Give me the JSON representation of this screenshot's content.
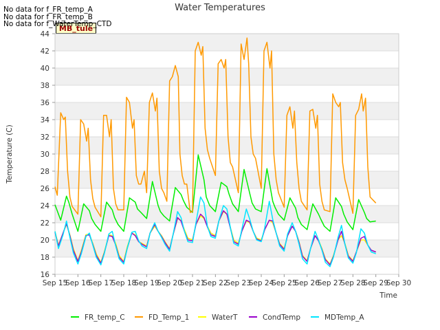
{
  "notes": [
    "No data for f_FR_temp_A",
    "No data for f_FR_temp_B",
    "No data for f_WaterTemp_CTD"
  ],
  "badge": "MB_tule",
  "chart_data": {
    "type": "line",
    "title": "Water Temperatures",
    "xlabel": "Time",
    "ylabel": "Temperature (C)",
    "ylim": [
      16,
      44
    ],
    "yticks": [
      16,
      18,
      20,
      22,
      24,
      26,
      28,
      30,
      32,
      34,
      36,
      38,
      40,
      42,
      44
    ],
    "xticks": [
      "Sep 15",
      "Sep 16",
      "Sep 17",
      "Sep 18",
      "Sep 19",
      "Sep 20",
      "Sep 21",
      "Sep 22",
      "Sep 23",
      "Sep 24",
      "Sep 25",
      "Sep 26",
      "Sep 27",
      "Sep 28",
      "Sep 29",
      "Sep 30"
    ],
    "grid": "horizontal bands",
    "legend": "bottom",
    "series": [
      {
        "name": "FR_temp_C",
        "color": "#00ee00",
        "x": [
          15.0,
          15.25,
          15.5,
          15.6,
          15.75,
          16.0,
          16.25,
          16.5,
          16.6,
          16.75,
          17.0,
          17.25,
          17.5,
          17.6,
          17.75,
          18.0,
          18.25,
          18.5,
          18.6,
          18.75,
          19.0,
          19.25,
          19.5,
          19.6,
          19.75,
          20.0,
          20.25,
          20.5,
          20.6,
          20.75,
          21.0,
          21.25,
          21.5,
          21.6,
          21.75,
          22.0,
          22.25,
          22.5,
          22.6,
          22.75,
          23.0,
          23.25,
          23.5,
          23.6,
          23.75,
          24.0,
          24.25,
          24.5,
          24.6,
          24.75,
          25.0,
          25.25,
          25.5,
          25.6,
          25.75,
          26.0,
          26.25,
          26.5,
          26.6,
          26.75,
          27.0,
          27.25,
          27.5,
          27.6,
          27.75,
          28.0,
          28.25,
          28.5,
          28.6,
          28.75,
          29.0
        ],
        "y": [
          24.1,
          22.3,
          25.1,
          24.4,
          23.0,
          21.0,
          24.2,
          23.4,
          22.5,
          21.8,
          21.0,
          24.4,
          23.5,
          22.6,
          21.8,
          21.0,
          24.9,
          24.4,
          23.6,
          23.2,
          22.5,
          26.8,
          24.0,
          23.3,
          22.8,
          22.2,
          26.1,
          25.3,
          24.6,
          23.8,
          23.2,
          29.9,
          27.0,
          25.0,
          24.0,
          23.3,
          26.7,
          26.2,
          25.3,
          24.2,
          23.3,
          28.2,
          25.4,
          24.3,
          23.6,
          23.3,
          28.3,
          24.5,
          23.8,
          23.0,
          22.3,
          24.9,
          23.7,
          22.6,
          21.8,
          21.2,
          24.2,
          23.0,
          22.4,
          21.6,
          21.0,
          24.9,
          23.9,
          23.0,
          22.1,
          21.2,
          24.7,
          23.2,
          22.5,
          22.1,
          22.2
        ]
      },
      {
        "name": "FD_Temp_1",
        "color": "#ff9900",
        "x": [
          15.0,
          15.1,
          15.25,
          15.38,
          15.45,
          15.55,
          15.65,
          15.75,
          16.0,
          16.12,
          16.25,
          16.38,
          16.45,
          16.55,
          16.65,
          16.75,
          17.0,
          17.12,
          17.25,
          17.38,
          17.45,
          17.55,
          17.65,
          17.75,
          18.0,
          18.12,
          18.25,
          18.38,
          18.45,
          18.55,
          18.65,
          18.75,
          18.9,
          19.0,
          19.12,
          19.25,
          19.38,
          19.45,
          19.55,
          19.65,
          19.75,
          19.88,
          20.0,
          20.12,
          20.25,
          20.38,
          20.45,
          20.55,
          20.65,
          20.75,
          20.9,
          21.0,
          21.12,
          21.25,
          21.38,
          21.45,
          21.55,
          21.65,
          21.75,
          22.0,
          22.12,
          22.25,
          22.38,
          22.45,
          22.55,
          22.65,
          22.75,
          23.0,
          23.12,
          23.25,
          23.38,
          23.45,
          23.55,
          23.65,
          23.75,
          24.0,
          24.12,
          24.25,
          24.38,
          24.45,
          24.55,
          24.65,
          24.75,
          25.0,
          25.12,
          25.25,
          25.38,
          25.45,
          25.55,
          25.65,
          25.75,
          26.0,
          26.12,
          26.25,
          26.38,
          26.45,
          26.55,
          26.65,
          26.75,
          27.0,
          27.12,
          27.25,
          27.38,
          27.45,
          27.55,
          27.65,
          27.75,
          28.0,
          28.12,
          28.25,
          28.38,
          28.45,
          28.55,
          28.65,
          28.75,
          29.0
        ],
        "y": [
          26.2,
          25.2,
          34.8,
          34.0,
          34.3,
          28.0,
          25.0,
          23.9,
          23.0,
          34.0,
          33.5,
          31.5,
          33.0,
          27.0,
          24.8,
          23.8,
          22.7,
          34.5,
          34.5,
          32.0,
          34.0,
          26.0,
          24.2,
          23.5,
          23.5,
          36.6,
          36.0,
          33.0,
          34.0,
          27.5,
          26.5,
          26.5,
          28.0,
          25.5,
          36.0,
          37.1,
          35.0,
          36.5,
          28.0,
          26.0,
          25.5,
          24.5,
          38.5,
          39.0,
          40.3,
          39.0,
          30.0,
          27.5,
          26.5,
          26.5,
          23.2,
          23.3,
          42.0,
          43.0,
          41.5,
          42.5,
          33.0,
          30.5,
          29.5,
          27.5,
          40.5,
          41.0,
          40.0,
          41.0,
          32.0,
          29.0,
          28.5,
          25.5,
          42.8,
          41.0,
          43.5,
          40.5,
          32.0,
          30.0,
          29.5,
          26.0,
          42.0,
          43.0,
          40.0,
          42.0,
          30.0,
          27.0,
          25.5,
          23.8,
          34.5,
          35.5,
          33.0,
          35.0,
          29.0,
          26.0,
          24.5,
          23.5,
          35.0,
          35.2,
          33.0,
          34.5,
          26.5,
          24.5,
          23.5,
          23.3,
          37.0,
          36.0,
          35.5,
          36.0,
          29.0,
          27.0,
          26.0,
          23.1,
          34.5,
          35.2,
          37.0,
          35.0,
          36.5,
          28.5,
          25.0,
          24.3
        ]
      },
      {
        "name": "WaterT",
        "color": "#ffff00",
        "x": [
          15.0,
          15.15,
          15.35,
          15.5,
          15.65,
          15.8,
          16.0,
          16.15,
          16.35,
          16.5,
          16.65,
          16.8,
          17.0,
          17.15,
          17.35,
          17.5,
          17.65,
          17.8,
          18.0,
          18.15,
          18.35,
          18.5,
          18.65,
          18.8,
          19.0,
          19.15,
          19.35,
          19.5,
          19.65,
          19.8,
          20.0,
          20.15,
          20.35,
          20.5,
          20.65,
          20.8,
          21.0,
          21.15,
          21.35,
          21.5,
          21.65,
          21.8,
          22.0,
          22.15,
          22.35,
          22.5,
          22.65,
          22.8,
          23.0,
          23.15,
          23.35,
          23.5,
          23.65,
          23.8,
          24.0,
          24.15,
          24.35,
          24.5,
          24.65,
          24.8,
          25.0,
          25.15,
          25.35,
          25.5,
          25.65,
          25.8,
          26.0,
          26.15,
          26.35,
          26.5,
          26.65,
          26.8,
          27.0,
          27.15,
          27.35,
          27.5,
          27.65,
          27.8,
          28.0,
          28.15,
          28.35,
          28.5,
          28.65,
          28.8,
          29.0
        ],
        "y": [
          21.0,
          19.4,
          20.8,
          21.8,
          20.6,
          19.0,
          17.6,
          18.8,
          20.6,
          20.7,
          19.6,
          18.4,
          17.4,
          18.6,
          20.6,
          20.5,
          19.6,
          18.2,
          17.5,
          19.2,
          20.8,
          20.6,
          19.8,
          19.6,
          19.3,
          20.8,
          21.6,
          21.0,
          20.5,
          19.8,
          19.0,
          20.6,
          22.5,
          22.3,
          21.2,
          20.2,
          20.0,
          21.8,
          22.8,
          22.5,
          21.6,
          20.8,
          20.5,
          22.2,
          23.3,
          23.0,
          21.5,
          20.0,
          19.6,
          21.0,
          22.2,
          22.0,
          21.0,
          20.2,
          20.0,
          21.2,
          22.3,
          22.0,
          20.8,
          19.6,
          19.0,
          20.5,
          21.6,
          21.0,
          19.8,
          18.2,
          17.6,
          19.0,
          20.5,
          20.0,
          19.0,
          17.8,
          17.2,
          18.2,
          20.0,
          20.5,
          19.6,
          18.2,
          17.6,
          18.6,
          20.0,
          20.0,
          19.4,
          18.8,
          18.6
        ]
      },
      {
        "name": "CondTemp",
        "color": "#9900cc",
        "x": [
          15.0,
          15.15,
          15.35,
          15.5,
          15.65,
          15.8,
          16.0,
          16.15,
          16.35,
          16.5,
          16.65,
          16.8,
          17.0,
          17.15,
          17.35,
          17.5,
          17.65,
          17.8,
          18.0,
          18.15,
          18.35,
          18.5,
          18.65,
          18.8,
          19.0,
          19.15,
          19.35,
          19.5,
          19.65,
          19.8,
          20.0,
          20.15,
          20.35,
          20.5,
          20.65,
          20.8,
          21.0,
          21.15,
          21.35,
          21.5,
          21.65,
          21.8,
          22.0,
          22.15,
          22.35,
          22.5,
          22.65,
          22.8,
          23.0,
          23.15,
          23.35,
          23.5,
          23.65,
          23.8,
          24.0,
          24.15,
          24.35,
          24.5,
          24.65,
          24.8,
          25.0,
          25.15,
          25.35,
          25.5,
          25.65,
          25.8,
          26.0,
          26.15,
          26.35,
          26.5,
          26.65,
          26.8,
          27.0,
          27.15,
          27.35,
          27.5,
          27.65,
          27.8,
          28.0,
          28.15,
          28.35,
          28.5,
          28.65,
          28.8,
          29.0
        ],
        "y": [
          20.9,
          19.3,
          20.8,
          21.9,
          20.5,
          18.8,
          17.5,
          18.6,
          20.5,
          20.6,
          19.5,
          18.2,
          17.3,
          18.5,
          20.5,
          20.4,
          19.4,
          18.0,
          17.4,
          19.0,
          20.8,
          20.5,
          19.8,
          19.5,
          19.2,
          20.8,
          21.8,
          21.0,
          20.4,
          19.7,
          18.9,
          20.6,
          22.6,
          22.2,
          21.0,
          20.0,
          19.9,
          21.8,
          23.0,
          22.6,
          21.5,
          20.6,
          20.4,
          22.2,
          23.4,
          23.0,
          21.4,
          19.8,
          19.5,
          21.0,
          22.3,
          22.1,
          21.0,
          20.1,
          19.9,
          21.2,
          22.3,
          22.2,
          20.8,
          19.5,
          18.9,
          20.5,
          21.6,
          21.0,
          19.7,
          18.1,
          17.5,
          19.0,
          20.5,
          19.9,
          18.9,
          17.7,
          17.1,
          18.1,
          20.0,
          21.0,
          19.5,
          18.1,
          17.5,
          18.6,
          20.2,
          20.4,
          19.4,
          18.8,
          18.6
        ]
      },
      {
        "name": "MDTemp_A",
        "color": "#00e5ff",
        "x": [
          15.0,
          15.15,
          15.35,
          15.5,
          15.65,
          15.8,
          16.0,
          16.15,
          16.35,
          16.5,
          16.65,
          16.8,
          17.0,
          17.15,
          17.35,
          17.5,
          17.65,
          17.8,
          18.0,
          18.15,
          18.35,
          18.5,
          18.65,
          18.8,
          19.0,
          19.15,
          19.35,
          19.5,
          19.65,
          19.8,
          20.0,
          20.15,
          20.35,
          20.5,
          20.65,
          20.8,
          21.0,
          21.15,
          21.35,
          21.5,
          21.65,
          21.8,
          22.0,
          22.15,
          22.35,
          22.5,
          22.65,
          22.8,
          23.0,
          23.15,
          23.35,
          23.5,
          23.65,
          23.8,
          24.0,
          24.15,
          24.35,
          24.5,
          24.65,
          24.8,
          25.0,
          25.15,
          25.35,
          25.5,
          25.65,
          25.8,
          26.0,
          26.15,
          26.35,
          26.5,
          26.65,
          26.8,
          27.0,
          27.15,
          27.35,
          27.5,
          27.65,
          27.8,
          28.0,
          28.15,
          28.35,
          28.5,
          28.65,
          28.8,
          29.0
        ],
        "y": [
          21.0,
          19.0,
          20.6,
          22.2,
          20.3,
          18.5,
          17.2,
          18.4,
          20.4,
          20.8,
          19.4,
          18.0,
          17.1,
          18.4,
          20.7,
          21.0,
          19.3,
          17.8,
          17.2,
          19.0,
          20.9,
          21.0,
          19.9,
          19.3,
          19.0,
          20.8,
          22.0,
          21.0,
          20.3,
          19.5,
          18.7,
          20.6,
          23.3,
          22.6,
          21.0,
          19.8,
          19.7,
          22.0,
          25.0,
          24.3,
          21.6,
          20.4,
          20.2,
          22.2,
          24.0,
          23.6,
          21.5,
          19.6,
          19.3,
          21.2,
          23.6,
          22.4,
          21.0,
          20.0,
          19.8,
          21.4,
          24.5,
          22.4,
          20.8,
          19.3,
          18.7,
          20.7,
          22.0,
          21.0,
          19.5,
          17.8,
          17.2,
          19.0,
          21.0,
          20.0,
          18.8,
          17.4,
          16.9,
          18.0,
          20.3,
          21.7,
          19.5,
          17.9,
          17.3,
          18.5,
          21.3,
          20.8,
          19.4,
          18.6,
          18.4
        ]
      }
    ]
  }
}
